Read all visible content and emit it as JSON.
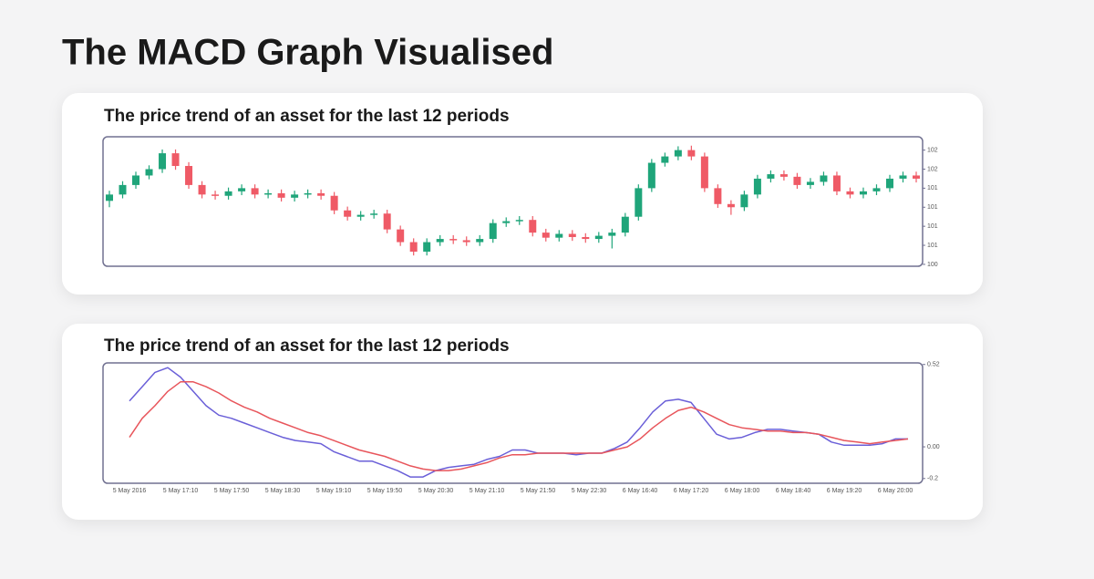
{
  "title": "The MACD Graph Visualised",
  "chart_data": [
    {
      "type": "candlestick",
      "title": "The price trend of an asset for the last 12 periods",
      "up_color": "#1fa57a",
      "down_color": "#ef5a66",
      "open": [
        101.2,
        101.3,
        101.45,
        101.6,
        101.7,
        101.95,
        101.75,
        101.45,
        101.3,
        101.28,
        101.35,
        101.4,
        101.3,
        101.32,
        101.25,
        101.3,
        101.32,
        101.28,
        101.05,
        100.95,
        100.98,
        101.0,
        100.75,
        100.55,
        100.4,
        100.55,
        100.6,
        100.58,
        100.55,
        100.6,
        100.85,
        100.88,
        100.9,
        100.7,
        100.62,
        100.68,
        100.63,
        100.6,
        100.65,
        100.7,
        100.95,
        101.4,
        101.8,
        101.9,
        102.0,
        101.9,
        101.4,
        101.15,
        101.1,
        101.3,
        101.55,
        101.62,
        101.58,
        101.45,
        101.5,
        101.6,
        101.35,
        101.3,
        101.35,
        101.4,
        101.55,
        101.6
      ],
      "high": [
        101.36,
        101.51,
        101.66,
        101.76,
        102.01,
        102.01,
        101.81,
        101.51,
        101.36,
        101.41,
        101.46,
        101.46,
        101.38,
        101.38,
        101.36,
        101.38,
        101.38,
        101.34,
        101.11,
        101.04,
        101.06,
        101.06,
        100.81,
        100.61,
        100.61,
        100.66,
        100.66,
        100.64,
        100.66,
        100.91,
        100.94,
        100.96,
        100.96,
        100.76,
        100.74,
        100.74,
        100.69,
        100.71,
        100.76,
        101.01,
        101.46,
        101.86,
        101.96,
        102.06,
        102.07,
        101.96,
        101.46,
        101.21,
        101.36,
        101.61,
        101.68,
        101.68,
        101.64,
        101.56,
        101.66,
        101.66,
        101.41,
        101.41,
        101.46,
        101.61,
        101.66,
        101.66
      ],
      "low": [
        101.1,
        101.24,
        101.39,
        101.54,
        101.64,
        101.69,
        101.39,
        101.24,
        101.22,
        101.22,
        101.29,
        101.24,
        101.24,
        101.19,
        101.19,
        101.24,
        101.22,
        100.99,
        100.89,
        100.89,
        100.92,
        100.69,
        100.49,
        100.34,
        100.34,
        100.49,
        100.52,
        100.49,
        100.49,
        100.54,
        100.79,
        100.82,
        100.64,
        100.56,
        100.56,
        100.57,
        100.54,
        100.54,
        100.45,
        100.64,
        100.89,
        101.34,
        101.74,
        101.84,
        101.84,
        101.34,
        101.09,
        100.98,
        101.04,
        101.24,
        101.49,
        101.52,
        101.39,
        101.39,
        101.44,
        101.29,
        101.24,
        101.24,
        101.29,
        101.34,
        101.49,
        101.49
      ],
      "close": [
        101.3,
        101.45,
        101.6,
        101.7,
        101.95,
        101.75,
        101.45,
        101.3,
        101.28,
        101.35,
        101.4,
        101.3,
        101.32,
        101.25,
        101.3,
        101.32,
        101.28,
        101.05,
        100.95,
        100.98,
        101.0,
        100.75,
        100.55,
        100.4,
        100.55,
        100.6,
        100.58,
        100.55,
        100.6,
        100.85,
        100.88,
        100.9,
        100.7,
        100.62,
        100.68,
        100.63,
        100.6,
        100.65,
        100.7,
        100.95,
        101.4,
        101.8,
        101.9,
        102.0,
        101.9,
        101.4,
        101.15,
        101.1,
        101.3,
        101.55,
        101.62,
        101.58,
        101.45,
        101.5,
        101.6,
        101.35,
        101.3,
        101.35,
        101.4,
        101.55,
        101.6,
        101.55
      ],
      "ylim": [
        100.17,
        102.21
      ],
      "yticks": [
        {
          "value": 102.0,
          "label": "102"
        },
        {
          "value": 101.7,
          "label": "102"
        },
        {
          "value": 101.4,
          "label": "101"
        },
        {
          "value": 101.1,
          "label": "101"
        },
        {
          "value": 100.8,
          "label": "101"
        },
        {
          "value": 100.5,
          "label": "101"
        },
        {
          "value": 100.2,
          "label": "100"
        }
      ]
    },
    {
      "type": "line",
      "title": "The price trend of an asset for the last 12 periods",
      "categories": [
        "5 May 2016",
        null,
        null,
        null,
        "5 May 17:10",
        null,
        null,
        null,
        "5 May 17:50",
        null,
        null,
        null,
        "5 May 18:30",
        null,
        null,
        null,
        "5 May 19:10",
        null,
        null,
        null,
        "5 May 19:50",
        null,
        null,
        null,
        "5 May 20:30",
        null,
        null,
        null,
        "5 May 21:10",
        null,
        null,
        null,
        "5 May 21:50",
        null,
        null,
        null,
        "5 May 22:30",
        null,
        null,
        null,
        "6 May 16:40",
        null,
        null,
        null,
        "6 May 17:20",
        null,
        null,
        null,
        "6 May 18:00",
        null,
        null,
        null,
        "6 May 18:40",
        null,
        null,
        null,
        "6 May 19:20",
        null,
        null,
        null,
        "6 May 20:00",
        null
      ],
      "series": [
        {
          "color": "#6a5fd8",
          "values": [
            0.29,
            0.38,
            0.47,
            0.5,
            0.44,
            0.35,
            0.26,
            0.2,
            0.18,
            0.15,
            0.12,
            0.09,
            0.06,
            0.04,
            0.03,
            0.02,
            -0.03,
            -0.06,
            -0.09,
            -0.09,
            -0.12,
            -0.15,
            -0.19,
            -0.19,
            -0.15,
            -0.13,
            -0.12,
            -0.11,
            -0.08,
            -0.06,
            -0.02,
            -0.02,
            -0.04,
            -0.04,
            -0.04,
            -0.05,
            -0.04,
            -0.04,
            -0.01,
            0.03,
            0.12,
            0.22,
            0.29,
            0.3,
            0.28,
            0.18,
            0.08,
            0.05,
            0.06,
            0.09,
            0.11,
            0.11,
            0.1,
            0.09,
            0.08,
            0.03,
            0.01,
            0.01,
            0.01,
            0.02,
            0.05,
            0.05
          ]
        },
        {
          "color": "#e8555b",
          "values": [
            0.06,
            0.18,
            0.26,
            0.35,
            0.41,
            0.41,
            0.38,
            0.34,
            0.29,
            0.25,
            0.22,
            0.18,
            0.15,
            0.12,
            0.09,
            0.07,
            0.04,
            0.01,
            -0.02,
            -0.04,
            -0.06,
            -0.09,
            -0.12,
            -0.14,
            -0.15,
            -0.15,
            -0.14,
            -0.12,
            -0.1,
            -0.07,
            -0.05,
            -0.05,
            -0.04,
            -0.04,
            -0.04,
            -0.04,
            -0.04,
            -0.04,
            -0.02,
            0.0,
            0.05,
            0.12,
            0.18,
            0.23,
            0.25,
            0.22,
            0.18,
            0.14,
            0.12,
            0.11,
            0.1,
            0.1,
            0.09,
            0.09,
            0.08,
            0.06,
            0.04,
            0.03,
            0.02,
            0.03,
            0.04,
            0.05
          ]
        }
      ],
      "ylim": [
        -0.23,
        0.53
      ],
      "yticks": [
        0.52,
        {
          "value": 0,
          "label": "0.00"
        },
        -0.2
      ]
    }
  ]
}
